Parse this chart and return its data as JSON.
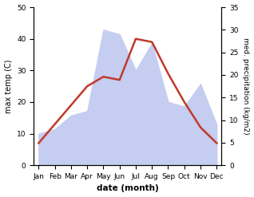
{
  "months": [
    "Jan",
    "Feb",
    "Mar",
    "Apr",
    "May",
    "Jun",
    "Jul",
    "Aug",
    "Sep",
    "Oct",
    "Nov",
    "Dec"
  ],
  "max_temp": [
    7,
    13,
    19,
    25,
    28,
    27,
    40,
    39,
    29,
    20,
    12,
    7
  ],
  "precipitation": [
    7,
    8,
    11,
    12,
    30,
    29,
    21,
    27,
    14,
    13,
    18,
    9
  ],
  "temp_color": "#c0392b",
  "precip_fill_color": "#c5cdf0",
  "temp_ylim": [
    0,
    50
  ],
  "precip_ylim": [
    0,
    35
  ],
  "temp_yticks": [
    0,
    10,
    20,
    30,
    40,
    50
  ],
  "precip_yticks": [
    0,
    5,
    10,
    15,
    20,
    25,
    30,
    35
  ],
  "ylabel_left": "max temp (C)",
  "ylabel_right": "med. precipitation (kg/m2)",
  "xlabel": "date (month)",
  "bg_color": "#ffffff",
  "line_width": 1.8
}
